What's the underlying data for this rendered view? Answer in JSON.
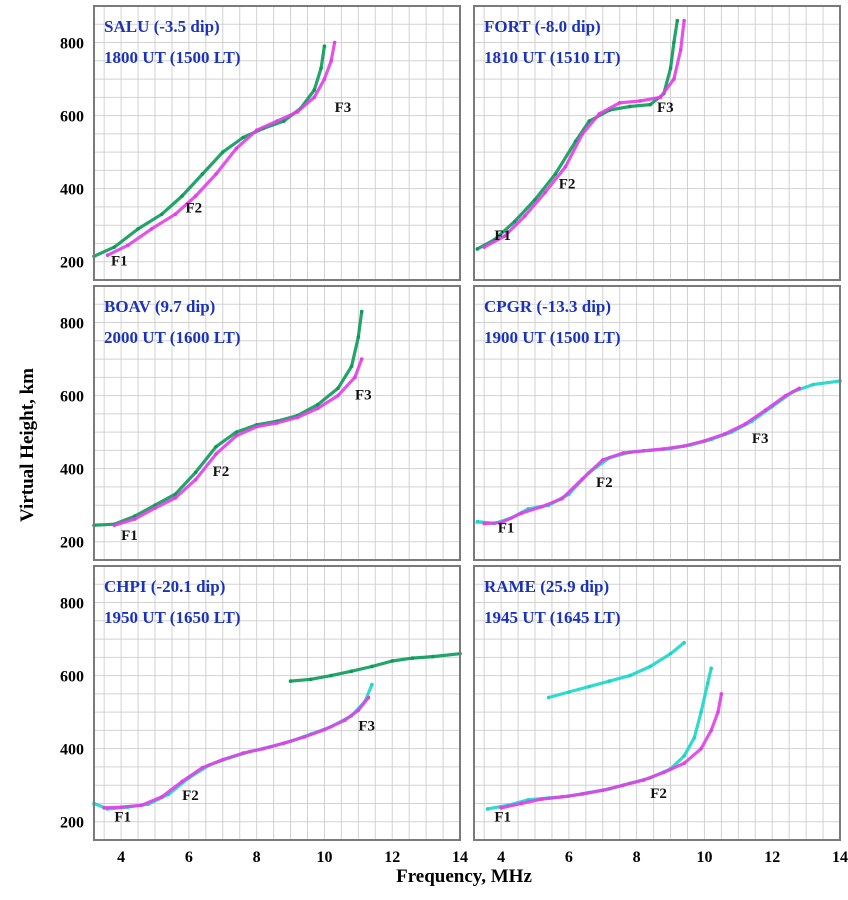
{
  "figure": {
    "ylabel": "Virtual Height, km",
    "xlabel": "Frequency, MHz"
  },
  "colors": {
    "o_mode": "#e040e8",
    "x_mode": "#0a9a5a",
    "x_mode_alt": "#19d7c8",
    "title": "#1a33b8",
    "grid": "#d2d2d2",
    "frame": "#7a7a7a"
  },
  "chart_data": [
    {
      "type": "scatter",
      "title": "SALU (-3.5 dip)",
      "subtitle": "1800 UT (1500 LT)",
      "xlim": [
        3.2,
        14
      ],
      "ylim": [
        150,
        900
      ],
      "xticks": [
        "4",
        "6",
        "8",
        "10",
        "12",
        "14"
      ],
      "yticks": [
        "200",
        "400",
        "600",
        "800"
      ],
      "show_xticks": false,
      "show_yticks": true,
      "grid": true,
      "labels": [
        {
          "text": "F1",
          "x": 3.7,
          "y": 190
        },
        {
          "text": "F2",
          "x": 5.9,
          "y": 335
        },
        {
          "text": "F3",
          "x": 10.3,
          "y": 610
        }
      ],
      "series": [
        {
          "color_key": "x_mode",
          "values": [
            [
              3.2,
              215
            ],
            [
              3.8,
              240
            ],
            [
              4.5,
              290
            ],
            [
              5.2,
              330
            ],
            [
              5.8,
              380
            ],
            [
              6.4,
              440
            ],
            [
              7.0,
              500
            ],
            [
              7.6,
              540
            ],
            [
              8.2,
              565
            ],
            [
              8.8,
              585
            ],
            [
              9.3,
              620
            ],
            [
              9.7,
              670
            ],
            [
              9.9,
              730
            ],
            [
              10.0,
              790
            ]
          ]
        },
        {
          "color_key": "o_mode",
          "values": [
            [
              3.6,
              218
            ],
            [
              4.2,
              245
            ],
            [
              4.9,
              290
            ],
            [
              5.6,
              330
            ],
            [
              6.2,
              380
            ],
            [
              6.8,
              440
            ],
            [
              7.4,
              510
            ],
            [
              8.0,
              560
            ],
            [
              8.6,
              585
            ],
            [
              9.2,
              610
            ],
            [
              9.7,
              650
            ],
            [
              10.0,
              700
            ],
            [
              10.2,
              750
            ],
            [
              10.3,
              800
            ]
          ]
        }
      ]
    },
    {
      "type": "scatter",
      "title": "FORT (-8.0 dip)",
      "subtitle": "1810 UT (1510 LT)",
      "xlim": [
        3.2,
        14
      ],
      "ylim": [
        150,
        900
      ],
      "xticks": [
        "4",
        "6",
        "8",
        "10",
        "12",
        "14"
      ],
      "yticks": [
        "200",
        "400",
        "600",
        "800"
      ],
      "show_xticks": false,
      "show_yticks": false,
      "grid": true,
      "labels": [
        {
          "text": "F1",
          "x": 3.8,
          "y": 260
        },
        {
          "text": "F2",
          "x": 5.7,
          "y": 400
        },
        {
          "text": "F3",
          "x": 8.6,
          "y": 610
        }
      ],
      "series": [
        {
          "color_key": "x_mode",
          "values": [
            [
              3.3,
              235
            ],
            [
              3.8,
              260
            ],
            [
              4.4,
              310
            ],
            [
              5.0,
              370
            ],
            [
              5.6,
              440
            ],
            [
              6.2,
              530
            ],
            [
              6.6,
              585
            ],
            [
              7.2,
              615
            ],
            [
              7.8,
              625
            ],
            [
              8.4,
              630
            ],
            [
              8.8,
              660
            ],
            [
              9.0,
              730
            ],
            [
              9.1,
              800
            ],
            [
              9.2,
              860
            ]
          ]
        },
        {
          "color_key": "o_mode",
          "values": [
            [
              3.5,
              240
            ],
            [
              4.1,
              270
            ],
            [
              4.7,
              325
            ],
            [
              5.3,
              390
            ],
            [
              5.9,
              460
            ],
            [
              6.4,
              550
            ],
            [
              6.9,
              605
            ],
            [
              7.5,
              635
            ],
            [
              8.1,
              640
            ],
            [
              8.7,
              650
            ],
            [
              9.1,
              700
            ],
            [
              9.3,
              780
            ],
            [
              9.4,
              860
            ]
          ]
        }
      ]
    },
    {
      "type": "scatter",
      "title": "BOAV (9.7 dip)",
      "subtitle": "2000 UT (1600 LT)",
      "xlim": [
        3.2,
        14
      ],
      "ylim": [
        150,
        900
      ],
      "xticks": [
        "4",
        "6",
        "8",
        "10",
        "12",
        "14"
      ],
      "yticks": [
        "200",
        "400",
        "600",
        "800"
      ],
      "show_xticks": false,
      "show_yticks": true,
      "grid": true,
      "labels": [
        {
          "text": "F1",
          "x": 4.0,
          "y": 205
        },
        {
          "text": "F2",
          "x": 6.7,
          "y": 380
        },
        {
          "text": "F3",
          "x": 10.9,
          "y": 590
        }
      ],
      "series": [
        {
          "color_key": "x_mode",
          "values": [
            [
              3.2,
              245
            ],
            [
              3.8,
              248
            ],
            [
              4.4,
              270
            ],
            [
              5.0,
              300
            ],
            [
              5.6,
              330
            ],
            [
              6.2,
              390
            ],
            [
              6.8,
              460
            ],
            [
              7.4,
              500
            ],
            [
              8.0,
              520
            ],
            [
              8.6,
              530
            ],
            [
              9.2,
              545
            ],
            [
              9.8,
              575
            ],
            [
              10.4,
              620
            ],
            [
              10.8,
              680
            ],
            [
              11.0,
              760
            ],
            [
              11.1,
              830
            ]
          ]
        },
        {
          "color_key": "o_mode",
          "values": [
            [
              3.8,
              245
            ],
            [
              4.4,
              262
            ],
            [
              5.0,
              292
            ],
            [
              5.6,
              320
            ],
            [
              6.2,
              370
            ],
            [
              6.8,
              440
            ],
            [
              7.4,
              490
            ],
            [
              8.0,
              515
            ],
            [
              8.6,
              525
            ],
            [
              9.2,
              540
            ],
            [
              9.8,
              565
            ],
            [
              10.4,
              600
            ],
            [
              10.9,
              650
            ],
            [
              11.1,
              700
            ]
          ]
        }
      ]
    },
    {
      "type": "scatter",
      "title": "CPGR (-13.3 dip)",
      "subtitle": "1900 UT (1500 LT)",
      "xlim": [
        3.2,
        14
      ],
      "ylim": [
        150,
        900
      ],
      "xticks": [
        "4",
        "6",
        "8",
        "10",
        "12",
        "14"
      ],
      "yticks": [
        "200",
        "400",
        "600",
        "800"
      ],
      "show_xticks": false,
      "show_yticks": false,
      "grid": true,
      "labels": [
        {
          "text": "F1",
          "x": 3.9,
          "y": 225
        },
        {
          "text": "F2",
          "x": 6.8,
          "y": 350
        },
        {
          "text": "F3",
          "x": 11.4,
          "y": 470
        }
      ],
      "series": [
        {
          "color_key": "x_mode_alt",
          "values": [
            [
              3.3,
              255
            ],
            [
              3.8,
              250
            ],
            [
              4.3,
              265
            ],
            [
              4.8,
              290
            ],
            [
              5.4,
              300
            ],
            [
              6.0,
              330
            ],
            [
              6.6,
              390
            ],
            [
              7.2,
              430
            ],
            [
              7.8,
              445
            ],
            [
              8.4,
              450
            ],
            [
              9.0,
              455
            ],
            [
              9.6,
              465
            ],
            [
              10.2,
              480
            ],
            [
              10.8,
              500
            ],
            [
              11.4,
              530
            ],
            [
              12.0,
              570
            ],
            [
              12.6,
              610
            ],
            [
              13.2,
              630
            ],
            [
              14.0,
              640
            ]
          ]
        },
        {
          "color_key": "o_mode",
          "values": [
            [
              3.5,
              250
            ],
            [
              4.0,
              252
            ],
            [
              4.6,
              278
            ],
            [
              5.2,
              296
            ],
            [
              5.8,
              318
            ],
            [
              6.4,
              372
            ],
            [
              7.0,
              424
            ],
            [
              7.6,
              443
            ],
            [
              8.2,
              449
            ],
            [
              8.8,
              454
            ],
            [
              9.4,
              462
            ],
            [
              10.0,
              476
            ],
            [
              10.6,
              495
            ],
            [
              11.2,
              522
            ],
            [
              11.8,
              560
            ],
            [
              12.4,
              600
            ],
            [
              12.8,
              620
            ]
          ]
        }
      ]
    },
    {
      "type": "scatter",
      "title": "CHPI (-20.1 dip)",
      "subtitle": "1950 UT (1650 LT)",
      "xlim": [
        3.2,
        14
      ],
      "ylim": [
        150,
        900
      ],
      "xticks": [
        "4",
        "6",
        "8",
        "10",
        "12",
        "14"
      ],
      "yticks": [
        "200",
        "400",
        "600",
        "800"
      ],
      "show_xticks": true,
      "show_yticks": true,
      "grid": true,
      "labels": [
        {
          "text": "F1",
          "x": 3.8,
          "y": 200
        },
        {
          "text": "F2",
          "x": 5.8,
          "y": 260
        },
        {
          "text": "F3",
          "x": 11.0,
          "y": 450
        }
      ],
      "series": [
        {
          "color_key": "x_mode_alt",
          "values": [
            [
              3.2,
              250
            ],
            [
              3.6,
              235
            ],
            [
              4.2,
              240
            ],
            [
              4.8,
              248
            ],
            [
              5.4,
              275
            ],
            [
              6.0,
              320
            ],
            [
              6.6,
              355
            ],
            [
              7.2,
              375
            ],
            [
              7.8,
              392
            ],
            [
              8.4,
              405
            ],
            [
              9.0,
              420
            ],
            [
              9.6,
              440
            ],
            [
              10.2,
              460
            ],
            [
              10.8,
              490
            ],
            [
              11.2,
              530
            ],
            [
              11.4,
              575
            ]
          ]
        },
        {
          "color_key": "o_mode",
          "values": [
            [
              3.5,
              238
            ],
            [
              4.0,
              240
            ],
            [
              4.6,
              245
            ],
            [
              5.2,
              268
            ],
            [
              5.8,
              310
            ],
            [
              6.4,
              348
            ],
            [
              7.0,
              370
            ],
            [
              7.6,
              388
            ],
            [
              8.2,
              400
            ],
            [
              8.8,
              415
            ],
            [
              9.4,
              432
            ],
            [
              10.0,
              452
            ],
            [
              10.6,
              478
            ],
            [
              11.0,
              505
            ],
            [
              11.3,
              540
            ]
          ]
        },
        {
          "color_key": "x_mode",
          "values": [
            [
              9.0,
              585
            ],
            [
              9.6,
              590
            ],
            [
              10.2,
              600
            ],
            [
              10.8,
              612
            ],
            [
              11.4,
              625
            ],
            [
              12.0,
              640
            ],
            [
              12.6,
              648
            ],
            [
              13.2,
              652
            ],
            [
              14.0,
              660
            ]
          ]
        }
      ]
    },
    {
      "type": "scatter",
      "title": "RAME (25.9 dip)",
      "subtitle": "1945 UT (1645 LT)",
      "xlim": [
        3.2,
        14
      ],
      "ylim": [
        150,
        900
      ],
      "xticks": [
        "4",
        "6",
        "8",
        "10",
        "12",
        "14"
      ],
      "yticks": [
        "200",
        "400",
        "600",
        "800"
      ],
      "show_xticks": true,
      "show_yticks": false,
      "grid": true,
      "labels": [
        {
          "text": "F1",
          "x": 3.8,
          "y": 200
        },
        {
          "text": "F2",
          "x": 8.4,
          "y": 265
        }
      ],
      "series": [
        {
          "color_key": "x_mode_alt",
          "values": [
            [
              3.6,
              235
            ],
            [
              4.2,
              245
            ],
            [
              4.8,
              260
            ],
            [
              5.4,
              265
            ],
            [
              6.0,
              270
            ],
            [
              6.6,
              280
            ],
            [
              7.2,
              290
            ],
            [
              7.8,
              305
            ],
            [
              8.4,
              320
            ],
            [
              9.0,
              345
            ],
            [
              9.4,
              380
            ],
            [
              9.7,
              430
            ],
            [
              9.9,
              500
            ],
            [
              10.1,
              580
            ],
            [
              10.2,
              620
            ]
          ]
        },
        {
          "color_key": "o_mode",
          "values": [
            [
              4.0,
              238
            ],
            [
              4.6,
              250
            ],
            [
              5.2,
              262
            ],
            [
              5.8,
              268
            ],
            [
              6.4,
              276
            ],
            [
              7.0,
              286
            ],
            [
              7.6,
              300
            ],
            [
              8.2,
              314
            ],
            [
              8.8,
              335
            ],
            [
              9.4,
              360
            ],
            [
              9.9,
              400
            ],
            [
              10.2,
              450
            ],
            [
              10.4,
              500
            ],
            [
              10.5,
              550
            ]
          ]
        },
        {
          "color_key": "x_mode_alt",
          "values": [
            [
              5.4,
              540
            ],
            [
              6.0,
              555
            ],
            [
              6.6,
              570
            ],
            [
              7.2,
              585
            ],
            [
              7.8,
              600
            ],
            [
              8.4,
              625
            ],
            [
              9.0,
              660
            ],
            [
              9.4,
              690
            ]
          ]
        }
      ]
    }
  ]
}
